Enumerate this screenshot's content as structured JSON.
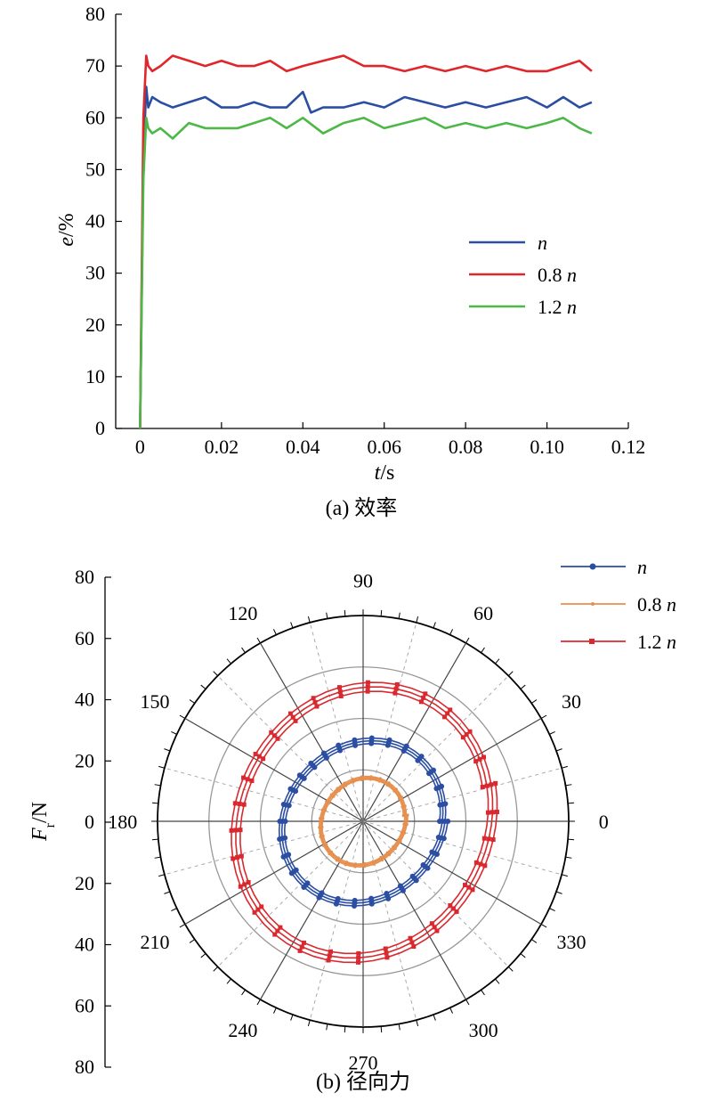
{
  "colors": {
    "n": "#2b4ea2",
    "n08_a": "#e0262b",
    "n12_a": "#4db848",
    "n08_b": "#e69050",
    "n12_b": "#d9292e",
    "axis": "#000000",
    "grid": "#999999"
  },
  "chart_data": [
    {
      "type": "line",
      "caption": "(a) 效率",
      "ylabel_var": "e",
      "ylabel_unit": "/%",
      "xlabel_var": "t",
      "xlabel_unit": "/s",
      "xlim": [
        -0.006,
        0.12
      ],
      "ylim": [
        0,
        80
      ],
      "xticks": [
        0,
        0.02,
        0.04,
        0.06,
        0.08,
        0.1,
        0.12
      ],
      "xtick_labels": [
        "0",
        "0.02",
        "0.04",
        "0.06",
        "0.08",
        "0.10",
        "0.12"
      ],
      "yticks": [
        0,
        10,
        20,
        30,
        40,
        50,
        60,
        70,
        80
      ],
      "ytick_labels": [
        "0",
        "10",
        "20",
        "30",
        "40",
        "50",
        "60",
        "70",
        "80"
      ],
      "legend": "right",
      "series": [
        {
          "name_italic": "n",
          "name_prefix": "",
          "color_key": "n_a",
          "x": [
            0,
            0.0008,
            0.0015,
            0.002,
            0.003,
            0.005,
            0.008,
            0.012,
            0.016,
            0.02,
            0.024,
            0.028,
            0.032,
            0.036,
            0.04,
            0.042,
            0.045,
            0.05,
            0.055,
            0.06,
            0.065,
            0.07,
            0.075,
            0.08,
            0.085,
            0.09,
            0.095,
            0.1,
            0.104,
            0.108,
            0.111
          ],
          "y": [
            0,
            52,
            66,
            62,
            64,
            63,
            62,
            63,
            64,
            62,
            62,
            63,
            62,
            62,
            65,
            61,
            62,
            62,
            63,
            62,
            64,
            63,
            62,
            63,
            62,
            63,
            64,
            62,
            64,
            62,
            63
          ]
        },
        {
          "name_italic": "n",
          "name_prefix": "0.8 ",
          "color_key": "n08_a",
          "x": [
            0,
            0.0008,
            0.0015,
            0.002,
            0.003,
            0.005,
            0.008,
            0.012,
            0.016,
            0.02,
            0.024,
            0.028,
            0.032,
            0.036,
            0.04,
            0.045,
            0.05,
            0.055,
            0.06,
            0.065,
            0.07,
            0.075,
            0.08,
            0.085,
            0.09,
            0.095,
            0.1,
            0.104,
            0.108,
            0.111
          ],
          "y": [
            0,
            60,
            72,
            70,
            69,
            70,
            72,
            71,
            70,
            71,
            70,
            70,
            71,
            69,
            70,
            71,
            72,
            70,
            70,
            69,
            70,
            69,
            70,
            69,
            70,
            69,
            69,
            70,
            71,
            69
          ]
        },
        {
          "name_italic": "n",
          "name_prefix": "1.2 ",
          "color_key": "n12_a",
          "x": [
            0,
            0.0008,
            0.0015,
            0.002,
            0.003,
            0.005,
            0.008,
            0.012,
            0.016,
            0.02,
            0.024,
            0.028,
            0.032,
            0.036,
            0.04,
            0.045,
            0.05,
            0.055,
            0.06,
            0.065,
            0.07,
            0.075,
            0.08,
            0.085,
            0.09,
            0.095,
            0.1,
            0.104,
            0.108,
            0.111
          ],
          "y": [
            0,
            48,
            60,
            58,
            57,
            58,
            56,
            59,
            58,
            58,
            58,
            59,
            60,
            58,
            60,
            57,
            59,
            60,
            58,
            59,
            60,
            58,
            59,
            58,
            59,
            58,
            59,
            60,
            58,
            57
          ]
        }
      ]
    },
    {
      "type": "scatter",
      "subtype": "polar",
      "caption": "(b) 径向力",
      "ylabel_var": "F",
      "ylabel_sub": "r",
      "ylabel_unit": "/N",
      "rlim": [
        0,
        80
      ],
      "r_ticks": [
        0,
        20,
        40,
        60,
        80
      ],
      "left_tick_labels": [
        "80",
        "60",
        "40",
        "20",
        "0",
        "20",
        "40",
        "60",
        "80"
      ],
      "angle_labels": [
        "0",
        "30",
        "60",
        "90",
        "120",
        "150",
        "180",
        "210",
        "240",
        "270",
        "300",
        "330"
      ],
      "legend": "top-right",
      "series": [
        {
          "name_italic": "n",
          "name_prefix": "",
          "color_key": "n",
          "marker": "diamond",
          "mean_radius": 32,
          "turns": 3
        },
        {
          "name_italic": "n",
          "name_prefix": "0.8 ",
          "color_key": "n08_b",
          "marker": "star",
          "mean_radius": 17,
          "turns": 3
        },
        {
          "name_italic": "n",
          "name_prefix": "1.2 ",
          "color_key": "n12_b",
          "marker": "square",
          "mean_radius": 52,
          "turns": 3
        }
      ]
    }
  ]
}
